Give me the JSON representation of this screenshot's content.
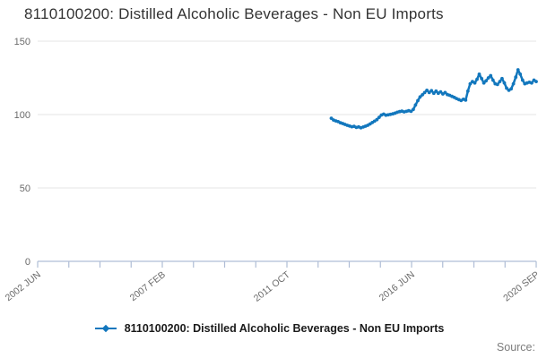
{
  "title": "8110100200: Distilled Alcoholic Beverages - Non EU Imports",
  "legend": {
    "label": "8110100200: Distilled Alcoholic Beverages - Non EU Imports"
  },
  "source_label": "Source:",
  "colors": {
    "line": "#1277bd",
    "grid": "#e6e6e6",
    "axis": "#afbdd6",
    "tick_label": "#6b6b6b",
    "title": "#333333"
  },
  "chart_data": {
    "type": "line",
    "title": "8110100200: Distilled Alcoholic Beverages - Non EU Imports",
    "xlabel": "",
    "ylabel": "",
    "grid": "horizontal",
    "legend_position": "bottom-center",
    "x_axis_range": [
      "2002-06",
      "2020-09"
    ],
    "num_x_ticks": 17,
    "x_tick_labels": [
      "2002 JUN",
      "2007 FEB",
      "2011 OCT",
      "2016 JUN",
      "2020 SEP"
    ],
    "x_tick_label_positions": [
      0,
      4,
      8,
      12,
      16
    ],
    "y_ticks": [
      0,
      50,
      100,
      150
    ],
    "ylim": [
      0,
      150
    ],
    "series": [
      {
        "name": "8110100200: Distilled Alcoholic Beverages - Non EU Imports",
        "frequency": "monthly",
        "start": "2013-03",
        "end": "2020-09",
        "values": [
          97.5,
          96.3,
          95.7,
          95.2,
          94.4,
          93.9,
          93.3,
          92.7,
          92.2,
          91.7,
          92.0,
          91.2,
          91.6,
          91.0,
          91.5,
          92.1,
          92.7,
          93.6,
          94.6,
          95.5,
          96.5,
          98.1,
          99.7,
          100.3,
          99.6,
          99.8,
          100.1,
          100.5,
          101.0,
          101.6,
          102.0,
          102.3,
          101.8,
          102.2,
          102.6,
          102.2,
          103.5,
          106.5,
          109.5,
          112.0,
          113.5,
          115.0,
          116.5,
          115.0,
          116.3,
          114.5,
          116.0,
          114.5,
          115.5,
          114.0,
          115.0,
          113.6,
          113.1,
          112.4,
          111.7,
          110.9,
          110.2,
          109.6,
          110.4,
          109.8,
          116.0,
          121.0,
          122.5,
          121.5,
          124.0,
          127.5,
          124.5,
          121.5,
          123.0,
          125.0,
          126.5,
          123.5,
          121.0,
          120.5,
          122.5,
          124.5,
          121.5,
          118.0,
          116.5,
          117.5,
          121.0,
          125.5,
          130.5,
          127.5,
          123.5,
          121.0,
          121.5,
          122.0,
          121.5,
          123.5,
          122.5
        ]
      }
    ]
  }
}
